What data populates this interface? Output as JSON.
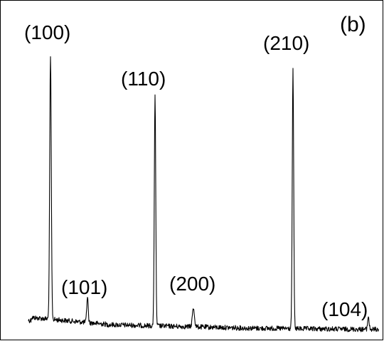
{
  "chart_data": {
    "type": "line",
    "title": "",
    "xlabel": "",
    "ylabel": "",
    "panel_label": "(b)",
    "grid": false,
    "legend": "none",
    "axes_visible": false,
    "line_color": "#000000",
    "background": "#ffffff",
    "frame_color": "#000000",
    "peaks": [
      {
        "label": "(100)",
        "height": 1.0
      },
      {
        "label": "(101)",
        "height": 0.1
      },
      {
        "label": "(110)",
        "height": 0.88
      },
      {
        "label": "(200)",
        "height": 0.07
      },
      {
        "label": "(210)",
        "height": 0.98
      },
      {
        "label": "(104)",
        "height": 0.05
      }
    ]
  }
}
